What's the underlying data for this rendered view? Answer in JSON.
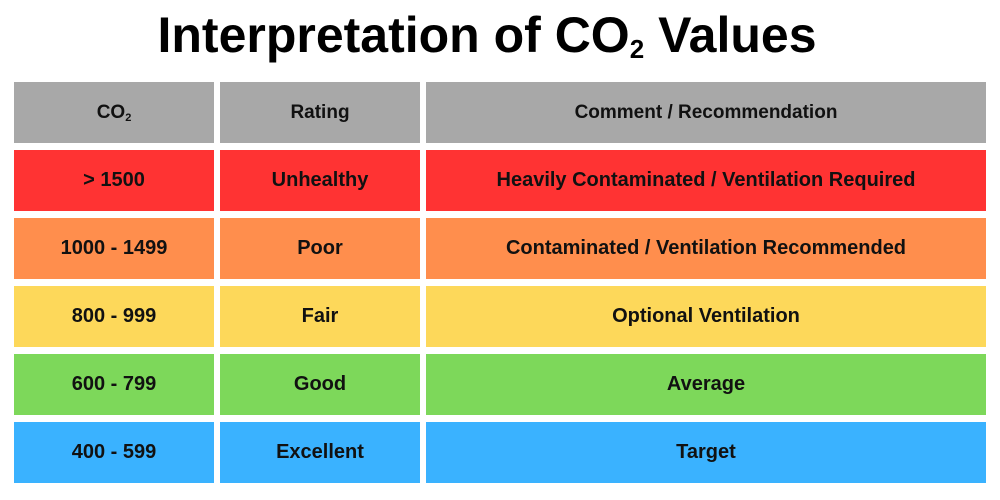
{
  "title": {
    "main": "Interpretation of CO",
    "subscript": "2",
    "suffix": " Values"
  },
  "colors": {
    "header": "#a8a8a8",
    "unhealthy": "#ff3333",
    "poor": "#ff8e4d",
    "fair": "#fdd85a",
    "good": "#7dd85a",
    "excellent": "#3ab2ff"
  },
  "table": {
    "headers": {
      "co2": "CO",
      "co2_subscript": "2",
      "rating": "Rating",
      "comment": "Comment / Recommendation"
    },
    "rows": [
      {
        "range": "> 1500",
        "rating": "Unhealthy",
        "comment": "Heavily Contaminated / Ventilation Required",
        "color": "#ff3333"
      },
      {
        "range": "1000 - 1499",
        "rating": "Poor",
        "comment": "Contaminated / Ventilation Recommended",
        "color": "#ff8e4d"
      },
      {
        "range": "800 - 999",
        "rating": "Fair",
        "comment": "Optional Ventilation",
        "color": "#fdd85a"
      },
      {
        "range": "600 - 799",
        "rating": "Good",
        "comment": "Average",
        "color": "#7dd85a"
      },
      {
        "range": "400 - 599",
        "rating": "Excellent",
        "comment": "Target",
        "color": "#3ab2ff"
      }
    ]
  }
}
